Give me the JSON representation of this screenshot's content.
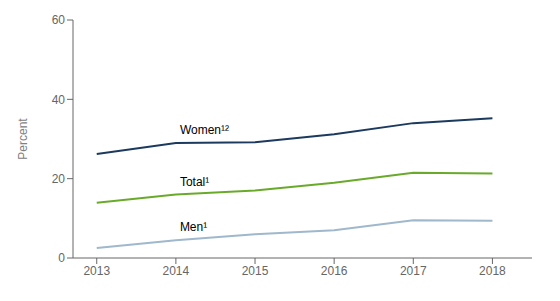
{
  "chart_data": {
    "type": "line",
    "x": [
      2013,
      2014,
      2015,
      2016,
      2017,
      2018
    ],
    "series": [
      {
        "name": "Women¹²",
        "color": "#1b3a5e",
        "values": [
          26.2,
          29.0,
          29.2,
          31.2,
          34.0,
          35.2
        ]
      },
      {
        "name": "Total¹",
        "color": "#6aaa2a",
        "values": [
          13.9,
          16.0,
          17.0,
          19.0,
          21.5,
          21.3
        ]
      },
      {
        "name": "Men¹",
        "color": "#9fb8cc",
        "values": [
          2.5,
          4.5,
          6.0,
          7.0,
          9.5,
          9.4
        ]
      }
    ],
    "y_label": "Percent",
    "xlim": [
      2012.7,
      2018.5
    ],
    "xticks": [
      2013,
      2014,
      2015,
      2016,
      2017,
      2018
    ],
    "ylim": [
      0,
      60
    ],
    "yticks": [
      0,
      20,
      40,
      60
    ],
    "grid": false
  }
}
